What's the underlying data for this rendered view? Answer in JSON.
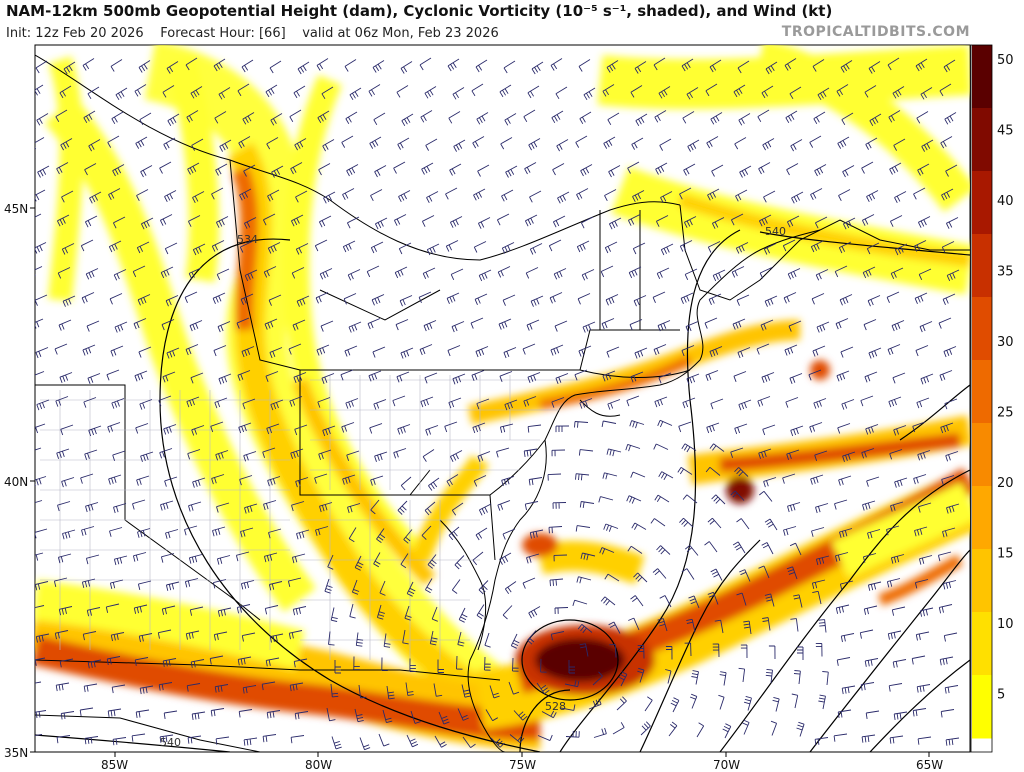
{
  "header": {
    "title": "NAM-12km 500mb Geopotential Height (dam), Cyclonic Vorticity (10⁻⁵ s⁻¹, shaded), and Wind (kt)",
    "init": "Init: 12z Feb 20 2026",
    "forecast_hour": "Forecast Hour: [66]",
    "valid": "valid at 06z Mon, Feb 23 2026",
    "credit": "TROPICALTIDBITS.COM"
  },
  "axes": {
    "lat_labels": [
      "45N",
      "40N",
      "35N"
    ],
    "lon_labels": [
      "85W",
      "80W",
      "75W",
      "70W",
      "65W"
    ]
  },
  "height_labels": [
    "534",
    "540",
    "528",
    "540"
  ],
  "colorbar": {
    "ticks": [
      "50",
      "45",
      "40",
      "35",
      "30",
      "25",
      "20",
      "15",
      "10",
      "5"
    ],
    "colors": [
      "#ffff00",
      "#ffe000",
      "#ffc400",
      "#ffa800",
      "#f88a00",
      "#ee6a00",
      "#e04c00",
      "#c83000",
      "#a81800",
      "#800a00",
      "#5a0000"
    ]
  },
  "map_extent": {
    "lon_min": -87,
    "lon_max": -64,
    "lat_min": 35,
    "lat_max": 47.5
  },
  "features": {
    "low_center": "528 dam closed low off Virginia/North Carolina coast",
    "wind_barbs": "dark blue wind barbs across domain"
  }
}
